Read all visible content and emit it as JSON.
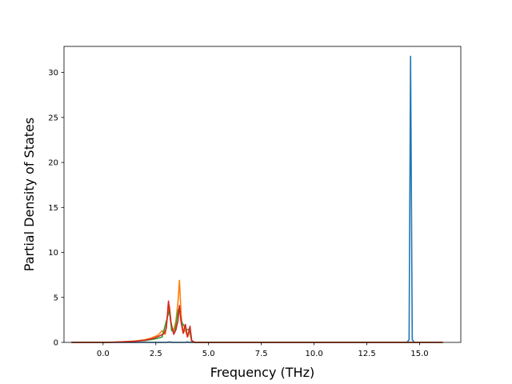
{
  "chart_data": {
    "type": "line",
    "title": "",
    "xlabel": "Frequency (THz)",
    "ylabel": "Partial Density of States",
    "xlim": [
      -1.85,
      16.95
    ],
    "ylim": [
      0,
      32.9
    ],
    "xticks": [
      0.0,
      2.5,
      5.0,
      7.5,
      10.0,
      12.5,
      15.0
    ],
    "xtick_labels": [
      "0.0",
      "2.5",
      "5.0",
      "7.5",
      "10.0",
      "12.5",
      "15.0"
    ],
    "yticks": [
      0,
      5,
      10,
      15,
      20,
      25,
      30
    ],
    "ytick_labels": [
      "0",
      "5",
      "10",
      "15",
      "20",
      "25",
      "30"
    ],
    "grid": false,
    "legend": "none",
    "series": [
      {
        "color": "#1f77b4",
        "points": [
          [
            -1.5,
            0
          ],
          [
            3.0,
            0
          ],
          [
            3.15,
            0.05
          ],
          [
            3.3,
            0
          ],
          [
            3.9,
            0
          ],
          [
            4.0,
            0.05
          ],
          [
            4.1,
            0
          ],
          [
            14.4,
            0
          ],
          [
            14.5,
            0.3
          ],
          [
            14.57,
            31.8
          ],
          [
            14.65,
            0.3
          ],
          [
            14.75,
            0
          ],
          [
            16.1,
            0
          ]
        ]
      },
      {
        "color": "#ff7f0e",
        "points": [
          [
            -1.5,
            0
          ],
          [
            0.0,
            0
          ],
          [
            0.5,
            0.03
          ],
          [
            1.0,
            0.08
          ],
          [
            1.5,
            0.15
          ],
          [
            2.0,
            0.3
          ],
          [
            2.3,
            0.5
          ],
          [
            2.6,
            0.8
          ],
          [
            2.8,
            1.3
          ],
          [
            2.95,
            0.9
          ],
          [
            3.05,
            2.9
          ],
          [
            3.15,
            4.0
          ],
          [
            3.25,
            1.6
          ],
          [
            3.35,
            1.4
          ],
          [
            3.45,
            2.3
          ],
          [
            3.55,
            4.5
          ],
          [
            3.62,
            6.9
          ],
          [
            3.7,
            3.0
          ],
          [
            3.8,
            1.1
          ],
          [
            3.9,
            1.4
          ],
          [
            4.0,
            0.6
          ],
          [
            4.1,
            1.2
          ],
          [
            4.2,
            0.1
          ],
          [
            4.35,
            0
          ],
          [
            16.1,
            0
          ]
        ]
      },
      {
        "color": "#2ca02c",
        "points": [
          [
            -1.5,
            0
          ],
          [
            0.0,
            0
          ],
          [
            1.0,
            0.05
          ],
          [
            2.0,
            0.2
          ],
          [
            2.5,
            0.4
          ],
          [
            2.8,
            0.6
          ],
          [
            3.05,
            2.8
          ],
          [
            3.15,
            3.6
          ],
          [
            3.25,
            1.3
          ],
          [
            3.4,
            1.2
          ],
          [
            3.55,
            3.5
          ],
          [
            3.62,
            3.9
          ],
          [
            3.7,
            2.3
          ],
          [
            3.85,
            1.8
          ],
          [
            3.95,
            1.4
          ],
          [
            4.1,
            1.5
          ],
          [
            4.2,
            0.1
          ],
          [
            4.35,
            0
          ],
          [
            16.1,
            0
          ]
        ]
      },
      {
        "color": "#d62728",
        "points": [
          [
            -1.5,
            0
          ],
          [
            0.0,
            0
          ],
          [
            0.5,
            0.02
          ],
          [
            1.0,
            0.06
          ],
          [
            1.5,
            0.12
          ],
          [
            2.0,
            0.25
          ],
          [
            2.4,
            0.45
          ],
          [
            2.7,
            0.75
          ],
          [
            2.9,
            1.0
          ],
          [
            3.0,
            1.6
          ],
          [
            3.1,
            4.6
          ],
          [
            3.2,
            2.4
          ],
          [
            3.35,
            0.9
          ],
          [
            3.45,
            1.4
          ],
          [
            3.55,
            2.4
          ],
          [
            3.62,
            4.1
          ],
          [
            3.7,
            2.2
          ],
          [
            3.8,
            1.0
          ],
          [
            3.9,
            2.0
          ],
          [
            4.0,
            0.6
          ],
          [
            4.12,
            1.8
          ],
          [
            4.2,
            0.2
          ],
          [
            4.35,
            0
          ],
          [
            16.1,
            0
          ]
        ]
      }
    ]
  }
}
